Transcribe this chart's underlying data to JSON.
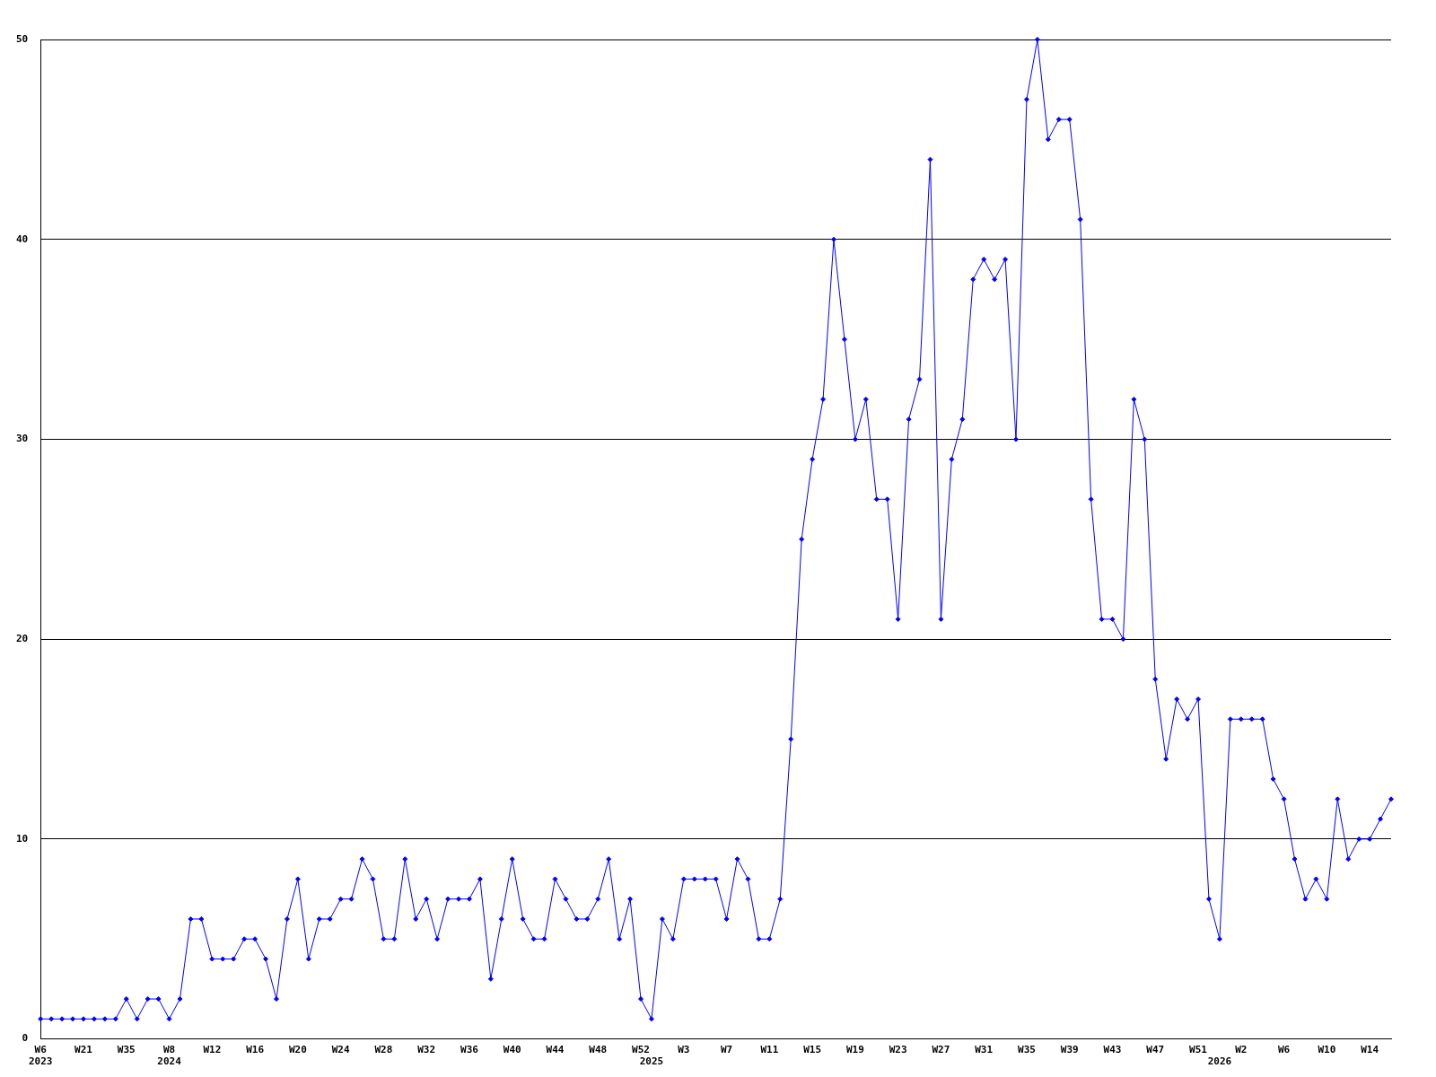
{
  "chart_data": {
    "type": "line",
    "categories": [
      "W6\n2023",
      null,
      null,
      null,
      "W21",
      null,
      null,
      null,
      "W35",
      null,
      null,
      null,
      "W8\n2024",
      null,
      null,
      null,
      "W12",
      null,
      null,
      null,
      "W16",
      null,
      null,
      null,
      "W20",
      null,
      null,
      null,
      "W24",
      null,
      null,
      null,
      "W28",
      null,
      null,
      null,
      "W32",
      null,
      null,
      null,
      "W36",
      null,
      null,
      null,
      "W40",
      null,
      null,
      null,
      "W44",
      null,
      null,
      null,
      "W48",
      null,
      null,
      null,
      "W52",
      "\n2025",
      null,
      null,
      "W3",
      null,
      null,
      null,
      "W7",
      null,
      null,
      null,
      "W11",
      null,
      null,
      null,
      "W15",
      null,
      null,
      null,
      "W19",
      null,
      null,
      null,
      "W23",
      null,
      null,
      null,
      "W27",
      null,
      null,
      null,
      "W31",
      null,
      null,
      null,
      "W35",
      null,
      null,
      null,
      "W39",
      null,
      null,
      null,
      "W43",
      null,
      null,
      null,
      "W47",
      null,
      null,
      null,
      "W51",
      null,
      "\n2026",
      null,
      "W2",
      null,
      null,
      null,
      "W6",
      null,
      null,
      null,
      "W10",
      null,
      null,
      null,
      "W14",
      null,
      null
    ],
    "series": [
      {
        "color": "#0000ff",
        "values": [
          1,
          1,
          1,
          1,
          1,
          1,
          1,
          1,
          2,
          1,
          2,
          2,
          1,
          2,
          6,
          6,
          4,
          4,
          4,
          5,
          5,
          4,
          2,
          6,
          8,
          4,
          6,
          6,
          7,
          7,
          9,
          8,
          5,
          5,
          9,
          6,
          7,
          5,
          7,
          7,
          7,
          8,
          3,
          6,
          9,
          6,
          5,
          5,
          8,
          7,
          6,
          6,
          7,
          9,
          5,
          7,
          2,
          1,
          6,
          5,
          8,
          8,
          8,
          8,
          6,
          9,
          8,
          5,
          5,
          7,
          15,
          25,
          29,
          32,
          40,
          35,
          30,
          32,
          27,
          27,
          21,
          31,
          33,
          44,
          21,
          29,
          31,
          38,
          39,
          38,
          39,
          30,
          47,
          50,
          45,
          46,
          46,
          41,
          27,
          21,
          21,
          20,
          32,
          30,
          18,
          14,
          17,
          16,
          17,
          7,
          5,
          16,
          16,
          16,
          16,
          13,
          12,
          9,
          7,
          8,
          7,
          12,
          9,
          10,
          10,
          11,
          12
        ]
      }
    ],
    "ylim": [
      0,
      50
    ],
    "yticks": [
      0,
      10,
      20,
      30,
      40,
      50
    ],
    "grid": "y",
    "legend": false,
    "marker": "diamond",
    "line_style": "solid"
  }
}
